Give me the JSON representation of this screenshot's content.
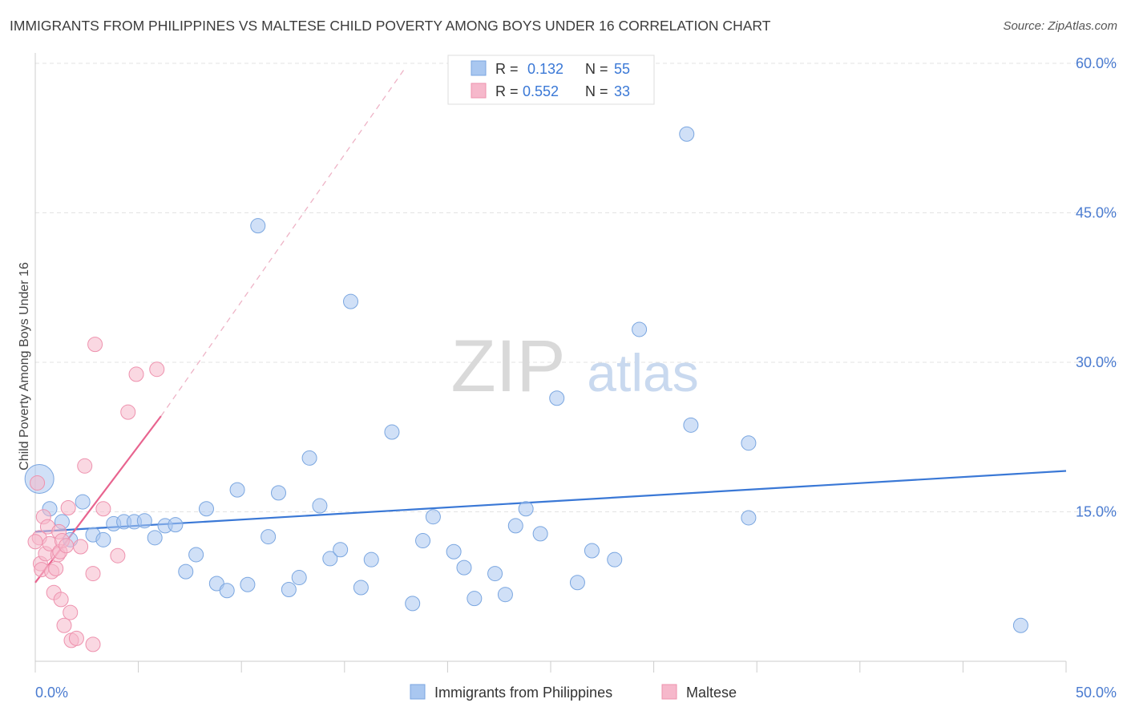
{
  "header": {
    "title": "IMMIGRANTS FROM PHILIPPINES VS MALTESE CHILD POVERTY AMONG BOYS UNDER 16 CORRELATION CHART",
    "source": "Source: ZipAtlas.com"
  },
  "watermark": {
    "zip": "ZIP",
    "atlas": "atlas"
  },
  "legend_top": {
    "rows": [
      {
        "r_label": "R = ",
        "r_value": "0.132",
        "n_label": "N = ",
        "n_value": "55"
      },
      {
        "r_label": "R = ",
        "r_value": "0.552",
        "n_label": "N = ",
        "n_value": "33"
      }
    ]
  },
  "colors": {
    "blue": "#3a78d6",
    "blue_fill": "#a9c7f0",
    "blue_stroke": "#7aa6e0",
    "pink": "#e8648f",
    "pink_fill": "#f6b8cb",
    "pink_stroke": "#ee92ae",
    "tick_label": "#4a7bd0",
    "grid": "#e3e3e3",
    "axis": "#cccccc"
  },
  "chart_data": {
    "type": "scatter",
    "title": "IMMIGRANTS FROM PHILIPPINES VS MALTESE CHILD POVERTY AMONG BOYS UNDER 16 CORRELATION CHART",
    "xlabel": "",
    "ylabel": "Child Poverty Among Boys Under 16",
    "xlim": [
      0,
      50
    ],
    "ylim": [
      0,
      60
    ],
    "x_tick_labels": [
      "0.0%",
      "50.0%"
    ],
    "y_ticks": [
      15,
      30,
      45,
      60
    ],
    "y_tick_labels": [
      "15.0%",
      "30.0%",
      "45.0%",
      "60.0%"
    ],
    "grid": true,
    "legend_position": "bottom-center",
    "series": [
      {
        "name": "Immigrants from Philippines",
        "color": "#a9c7f0",
        "r": 0.132,
        "n": 55,
        "trend": {
          "x": [
            0,
            50
          ],
          "y": [
            13.0,
            19.1
          ],
          "style": "solid"
        },
        "points": [
          [
            0.2,
            18.3
          ],
          [
            0.7,
            15.3
          ],
          [
            1.3,
            14.0
          ],
          [
            1.7,
            12.2
          ],
          [
            2.3,
            16.0
          ],
          [
            2.8,
            12.7
          ],
          [
            3.3,
            12.2
          ],
          [
            3.8,
            13.8
          ],
          [
            4.3,
            14.0
          ],
          [
            4.8,
            14.0
          ],
          [
            5.3,
            14.1
          ],
          [
            5.8,
            12.4
          ],
          [
            6.3,
            13.6
          ],
          [
            6.8,
            13.7
          ],
          [
            7.3,
            9.0
          ],
          [
            7.8,
            10.7
          ],
          [
            8.3,
            15.3
          ],
          [
            8.8,
            7.8
          ],
          [
            9.3,
            7.1
          ],
          [
            9.8,
            17.2
          ],
          [
            10.3,
            7.7
          ],
          [
            10.8,
            43.7
          ],
          [
            11.3,
            12.5
          ],
          [
            11.8,
            16.9
          ],
          [
            12.3,
            7.2
          ],
          [
            12.8,
            8.4
          ],
          [
            13.3,
            20.4
          ],
          [
            13.8,
            15.6
          ],
          [
            14.3,
            10.3
          ],
          [
            14.8,
            11.2
          ],
          [
            15.3,
            36.1
          ],
          [
            15.8,
            7.4
          ],
          [
            16.3,
            10.2
          ],
          [
            17.3,
            23.0
          ],
          [
            18.3,
            5.8
          ],
          [
            18.8,
            12.1
          ],
          [
            19.3,
            14.5
          ],
          [
            20.3,
            11.0
          ],
          [
            20.8,
            9.4
          ],
          [
            21.3,
            6.3
          ],
          [
            22.3,
            8.8
          ],
          [
            22.8,
            6.7
          ],
          [
            23.3,
            13.6
          ],
          [
            23.8,
            15.3
          ],
          [
            24.5,
            12.8
          ],
          [
            25.3,
            26.4
          ],
          [
            26.3,
            7.9
          ],
          [
            27.0,
            11.1
          ],
          [
            28.1,
            10.2
          ],
          [
            29.3,
            33.3
          ],
          [
            31.6,
            52.9
          ],
          [
            31.8,
            23.7
          ],
          [
            34.6,
            21.9
          ],
          [
            34.6,
            14.4
          ],
          [
            47.8,
            3.6
          ]
        ]
      },
      {
        "name": "Maltese",
        "color": "#f6b8cb",
        "r": 0.552,
        "n": 33,
        "trend": {
          "x": [
            0,
            6.1
          ],
          "y": [
            7.9,
            24.6
          ],
          "style": "solid",
          "extension": {
            "x": [
              6.1,
              18.0
            ],
            "y": [
              24.6,
              59.7
            ],
            "style": "dashed"
          }
        },
        "points": [
          [
            0.1,
            17.9
          ],
          [
            0.2,
            12.4
          ],
          [
            0.25,
            9.8
          ],
          [
            0.3,
            9.2
          ],
          [
            0.4,
            14.5
          ],
          [
            0.5,
            10.8
          ],
          [
            0.6,
            13.5
          ],
          [
            0.7,
            11.8
          ],
          [
            0.8,
            9.0
          ],
          [
            0.9,
            6.9
          ],
          [
            1.0,
            9.3
          ],
          [
            1.1,
            10.7
          ],
          [
            1.15,
            13.0
          ],
          [
            1.2,
            11.0
          ],
          [
            1.25,
            6.2
          ],
          [
            1.3,
            12.1
          ],
          [
            1.4,
            3.6
          ],
          [
            1.5,
            11.6
          ],
          [
            1.6,
            15.4
          ],
          [
            1.7,
            4.9
          ],
          [
            1.75,
            2.1
          ],
          [
            2.0,
            2.3
          ],
          [
            2.2,
            11.5
          ],
          [
            2.4,
            19.6
          ],
          [
            2.8,
            1.7
          ],
          [
            2.8,
            8.8
          ],
          [
            2.9,
            31.8
          ],
          [
            3.3,
            15.3
          ],
          [
            4.0,
            10.6
          ],
          [
            4.5,
            25.0
          ],
          [
            4.9,
            28.8
          ],
          [
            5.9,
            29.3
          ],
          [
            0.0,
            12.0
          ]
        ]
      }
    ]
  }
}
